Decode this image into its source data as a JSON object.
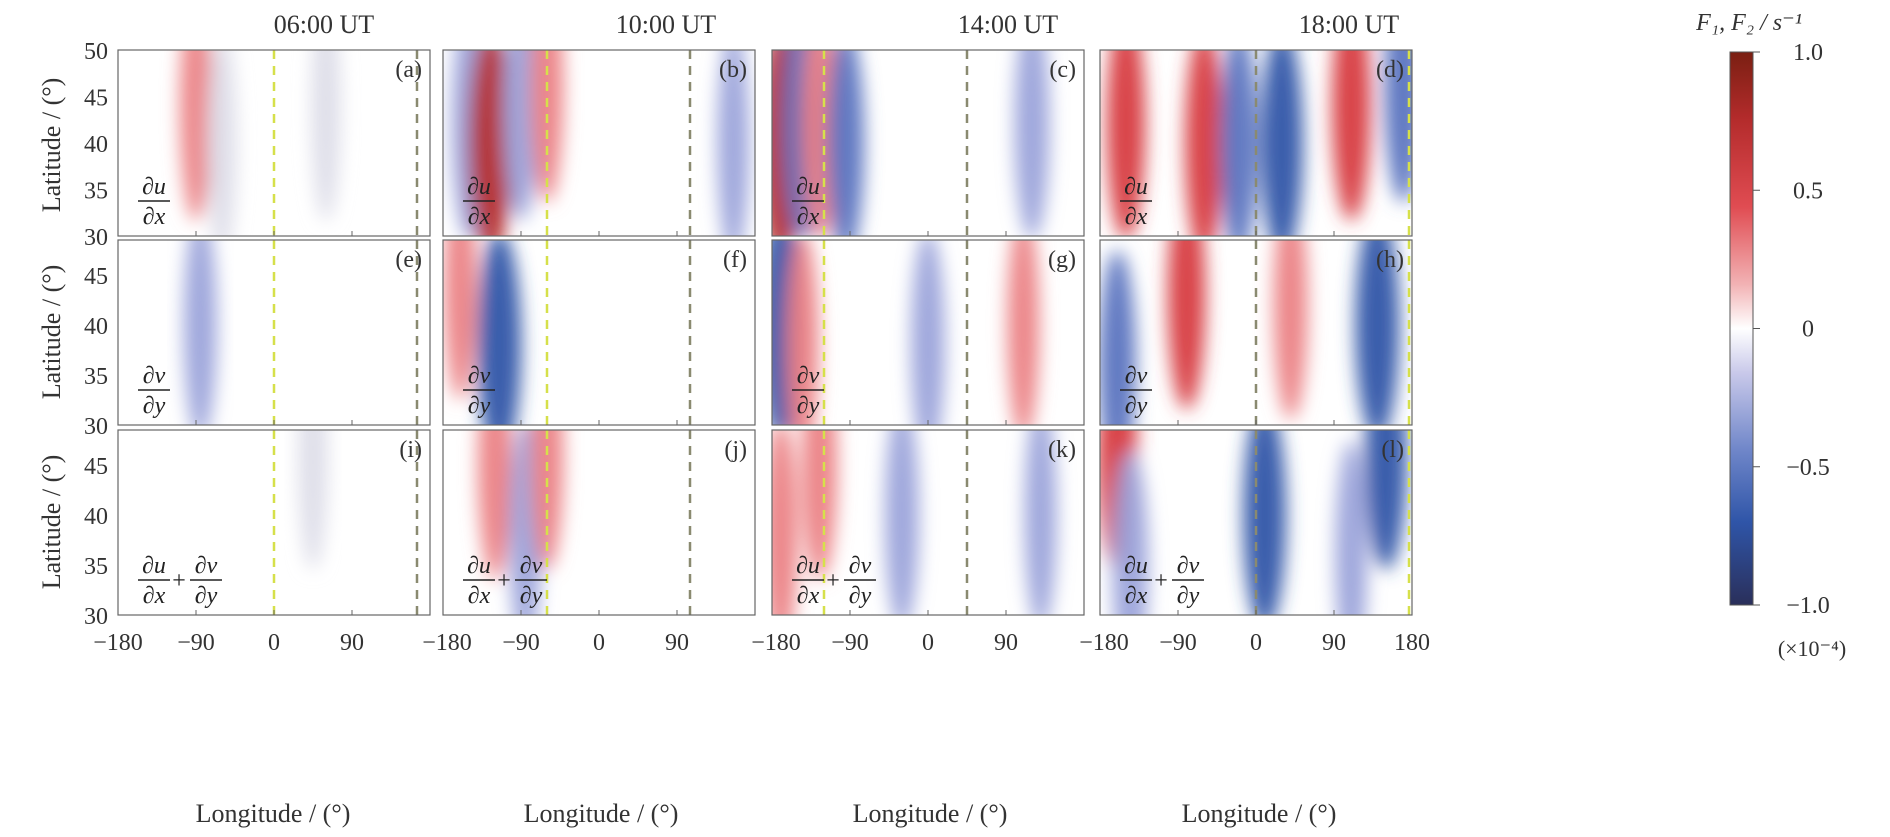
{
  "figure": {
    "column_titles": [
      "06:00 UT",
      "10:00 UT",
      "14:00 UT",
      "18:00 UT"
    ],
    "panel_letters": [
      "(a)",
      "(b)",
      "(c)",
      "(d)",
      "(e)",
      "(f)",
      "(g)",
      "(h)",
      "(i)",
      "(j)",
      "(k)",
      "(l)"
    ],
    "row_quantities": [
      "∂u/∂x",
      "∂v/∂y",
      "∂u/∂x + ∂v/∂y"
    ],
    "xlabel": "Longitude / (°)",
    "ylabel": "Latitude / (°)",
    "colorbar": {
      "label": "F₁, F₂ / s⁻¹",
      "ticks": [
        "1.0",
        "0.5",
        "0",
        "−0.5",
        "−1.0"
      ],
      "multiplier": "(×10⁻⁴)"
    },
    "colors": {
      "max_red": "#7a1f12",
      "red": "#d73a3f",
      "light_red": "#f2b2b4",
      "zero": "#ffffff",
      "light_blue": "#b7b7e3",
      "blue": "#2f55a8",
      "min_blue": "#2a2f5a",
      "yellow_dash": "#d6e04a",
      "gray_dash": "#8a8a70"
    }
  },
  "chart_data": {
    "type": "heatmap",
    "layout": "3 rows x 4 columns of longitude-latitude contour panels",
    "x": {
      "label": "Longitude / (°)",
      "range": [
        -180,
        180
      ],
      "ticks": [
        "−180",
        "−90",
        "0",
        "90",
        "180"
      ]
    },
    "y": {
      "label": "Latitude / (°)",
      "range": [
        30,
        50
      ],
      "ticks_row1": [
        "30",
        "35",
        "40",
        "45",
        "50"
      ],
      "ticks_rows23": [
        "30",
        "35",
        "40",
        "45"
      ]
    },
    "color_scale": {
      "range": [
        -1.0,
        1.0
      ],
      "unit_multiplier": "1e-4",
      "ticks": [
        1.0,
        0.5,
        0,
        -0.5,
        -1.0
      ]
    },
    "dashed_lines": {
      "06:00 UT": [
        0,
        165
      ],
      "10:00 UT": [
        -60,
        105
      ],
      "14:00 UT": [
        -120,
        45
      ],
      "18:00 UT": [
        180,
        0
      ]
    },
    "panels": [
      {
        "id": "a",
        "time": "06:00 UT",
        "quantity": "∂u/∂x",
        "features": [
          {
            "lon": -90,
            "lat": 44,
            "value": 0.2
          },
          {
            "lon": -60,
            "lat": 40,
            "value": -0.05
          },
          {
            "lon": 60,
            "lat": 44,
            "value": -0.05
          }
        ]
      },
      {
        "id": "b",
        "time": "10:00 UT",
        "quantity": "∂u/∂x",
        "features": [
          {
            "lon": -150,
            "lat": 42,
            "value": -0.35
          },
          {
            "lon": -125,
            "lat": 40,
            "value": 0.75
          },
          {
            "lon": -90,
            "lat": 44,
            "value": -0.35
          },
          {
            "lon": -60,
            "lat": 46,
            "value": 0.25
          },
          {
            "lon": 155,
            "lat": 40,
            "value": -0.2
          }
        ]
      },
      {
        "id": "c",
        "time": "14:00 UT",
        "quantity": "∂u/∂x",
        "features": [
          {
            "lon": -170,
            "lat": 40,
            "value": 0.8
          },
          {
            "lon": -145,
            "lat": 42,
            "value": -0.55
          },
          {
            "lon": -125,
            "lat": 42,
            "value": 0.4
          },
          {
            "lon": -95,
            "lat": 40,
            "value": -0.45
          },
          {
            "lon": 120,
            "lat": 42,
            "value": -0.35
          }
        ]
      },
      {
        "id": "d",
        "time": "18:00 UT",
        "quantity": "∂u/∂x",
        "features": [
          {
            "lon": -150,
            "lat": 42,
            "value": 0.55
          },
          {
            "lon": -60,
            "lat": 40,
            "value": 0.5
          },
          {
            "lon": -20,
            "lat": 40,
            "value": -0.45
          },
          {
            "lon": 30,
            "lat": 40,
            "value": -0.7
          },
          {
            "lon": 110,
            "lat": 44,
            "value": 0.55
          },
          {
            "lon": 170,
            "lat": 46,
            "value": -0.5
          }
        ]
      },
      {
        "id": "e",
        "time": "06:00 UT",
        "quantity": "∂v/∂y",
        "features": [
          {
            "lon": -85,
            "lat": 40,
            "value": -0.25
          }
        ]
      },
      {
        "id": "f",
        "time": "10:00 UT",
        "quantity": "∂v/∂y",
        "features": [
          {
            "lon": -160,
            "lat": 44,
            "value": 0.2
          },
          {
            "lon": -115,
            "lat": 38,
            "value": -0.8
          }
        ]
      },
      {
        "id": "g",
        "time": "14:00 UT",
        "quantity": "∂v/∂y",
        "features": [
          {
            "lon": -170,
            "lat": 40,
            "value": -0.8
          },
          {
            "lon": -145,
            "lat": 38,
            "value": 0.2
          },
          {
            "lon": 0,
            "lat": 38,
            "value": -0.3
          },
          {
            "lon": 110,
            "lat": 40,
            "value": 0.2
          }
        ]
      },
      {
        "id": "h",
        "time": "18:00 UT",
        "quantity": "∂v/∂y",
        "features": [
          {
            "lon": -160,
            "lat": 36,
            "value": -0.45
          },
          {
            "lon": -80,
            "lat": 43,
            "value": 0.5
          },
          {
            "lon": 40,
            "lat": 42,
            "value": 0.3
          },
          {
            "lon": 140,
            "lat": 40,
            "value": -0.8
          }
        ]
      },
      {
        "id": "i",
        "time": "06:00 UT",
        "quantity": "∂u/∂x + ∂v/∂y",
        "features": [
          {
            "lon": 45,
            "lat": 46,
            "value": -0.05
          }
        ]
      },
      {
        "id": "j",
        "time": "10:00 UT",
        "quantity": "∂u/∂x + ∂v/∂y",
        "features": [
          {
            "lon": -120,
            "lat": 45,
            "value": 0.3
          },
          {
            "lon": -85,
            "lat": 38,
            "value": -0.2
          },
          {
            "lon": -60,
            "lat": 46,
            "value": 0.25
          }
        ]
      },
      {
        "id": "k",
        "time": "14:00 UT",
        "quantity": "∂u/∂x + ∂v/∂y",
        "features": [
          {
            "lon": -170,
            "lat": 38,
            "value": 0.3
          },
          {
            "lon": -125,
            "lat": 45,
            "value": 0.35
          },
          {
            "lon": -30,
            "lat": 40,
            "value": -0.3
          },
          {
            "lon": 130,
            "lat": 40,
            "value": -0.2
          }
        ]
      },
      {
        "id": "l",
        "time": "18:00 UT",
        "quantity": "∂u/∂x + ∂v/∂y",
        "features": [
          {
            "lon": -160,
            "lat": 46,
            "value": 0.6
          },
          {
            "lon": -145,
            "lat": 35,
            "value": -0.4
          },
          {
            "lon": 10,
            "lat": 40,
            "value": -0.75
          },
          {
            "lon": 150,
            "lat": 46,
            "value": -0.7
          },
          {
            "lon": 110,
            "lat": 36,
            "value": -0.2
          }
        ]
      }
    ]
  }
}
